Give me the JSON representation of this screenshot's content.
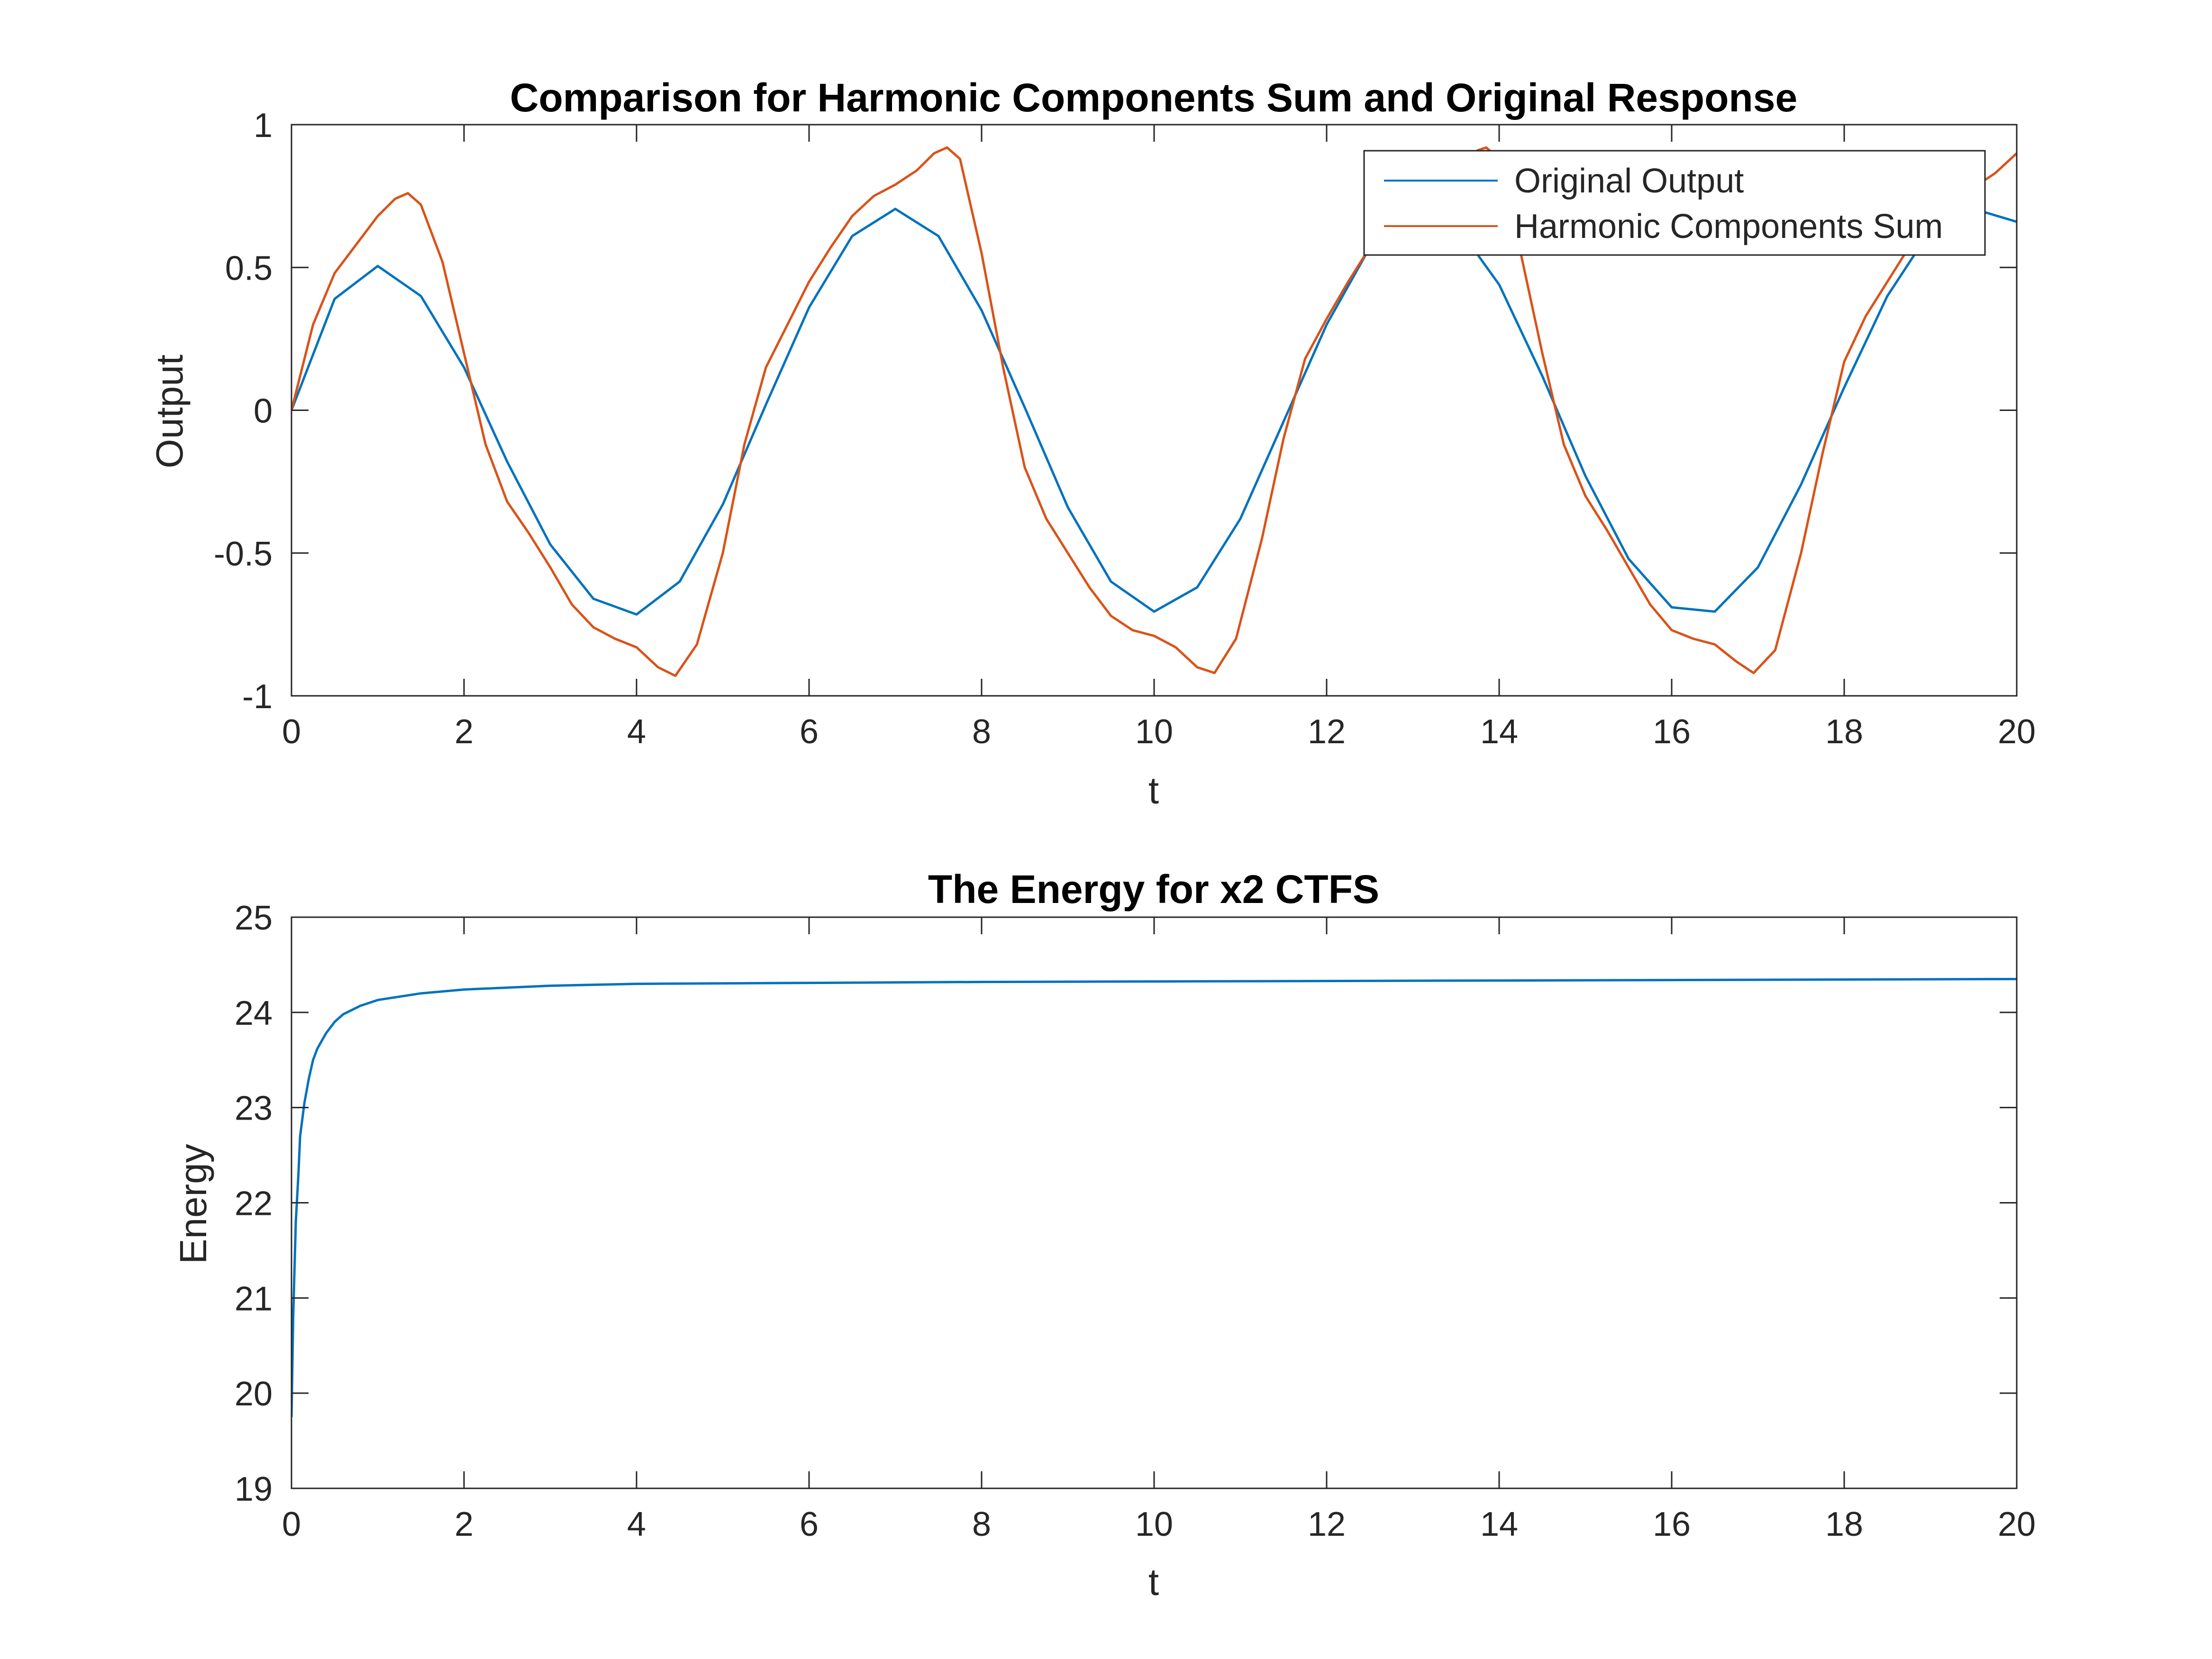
{
  "colors": {
    "series_blue": "#0072BD",
    "series_orange": "#D95319",
    "axis": "#262626",
    "background": "#ffffff"
  },
  "chart_data": [
    {
      "type": "line",
      "title": "Comparison for Harmonic Components Sum and Original Response",
      "xlabel": "t",
      "ylabel": "Output",
      "xlim": [
        0,
        20
      ],
      "ylim": [
        -1,
        1
      ],
      "xticks": [
        "0",
        "2",
        "4",
        "6",
        "8",
        "10",
        "12",
        "14",
        "16",
        "18",
        "20"
      ],
      "yticks": [
        "-1",
        "-0.5",
        "0",
        "0.5",
        "1"
      ],
      "grid": false,
      "legend_position": "top-right",
      "series": [
        {
          "name": "Original Output",
          "color": "#0072BD",
          "x": [
            0,
            0.5,
            1,
            1.5,
            2,
            2.5,
            3,
            3.5,
            4,
            4.5,
            5,
            5.5,
            6,
            6.5,
            7,
            7.5,
            8,
            8.5,
            9,
            9.5,
            10,
            10.5,
            11,
            11.5,
            12,
            12.5,
            13,
            13.5,
            14,
            14.5,
            15,
            15.5,
            16,
            16.5,
            17,
            17.5,
            18,
            18.5,
            19,
            19.5,
            20
          ],
          "y": [
            0,
            0.39,
            0.505,
            0.4,
            0.15,
            -0.18,
            -0.47,
            -0.66,
            -0.715,
            -0.6,
            -0.33,
            0.02,
            0.36,
            0.61,
            0.705,
            0.61,
            0.35,
            0.01,
            -0.34,
            -0.6,
            -0.705,
            -0.62,
            -0.38,
            -0.04,
            0.3,
            0.57,
            0.705,
            0.65,
            0.44,
            0.12,
            -0.23,
            -0.52,
            -0.69,
            -0.705,
            -0.55,
            -0.26,
            0.08,
            0.4,
            0.63,
            0.705,
            0.66
          ]
        },
        {
          "name": "Harmonic Components Sum",
          "color": "#D95319",
          "x": [
            0,
            0.25,
            0.5,
            0.75,
            1,
            1.2,
            1.35,
            1.5,
            1.75,
            2,
            2.25,
            2.5,
            2.75,
            3,
            3.25,
            3.5,
            3.75,
            4,
            4.25,
            4.45,
            4.7,
            5,
            5.25,
            5.5,
            5.75,
            6,
            6.25,
            6.5,
            6.75,
            7,
            7.25,
            7.45,
            7.6,
            7.75,
            8,
            8.25,
            8.5,
            8.75,
            9,
            9.25,
            9.5,
            9.75,
            10,
            10.25,
            10.5,
            10.7,
            10.95,
            11.25,
            11.5,
            11.75,
            12,
            12.25,
            12.5,
            12.75,
            13,
            13.25,
            13.5,
            13.75,
            13.85,
            14,
            14.25,
            14.5,
            14.75,
            15,
            15.25,
            15.5,
            15.75,
            16,
            16.25,
            16.5,
            16.75,
            16.95,
            17.2,
            17.5,
            17.75,
            18,
            18.25,
            18.5,
            18.75,
            19,
            19.25,
            19.5,
            19.75,
            20
          ],
          "y": [
            0,
            0.3,
            0.48,
            0.58,
            0.68,
            0.74,
            0.76,
            0.72,
            0.52,
            0.2,
            -0.12,
            -0.32,
            -0.43,
            -0.55,
            -0.68,
            -0.76,
            -0.8,
            -0.83,
            -0.9,
            -0.93,
            -0.82,
            -0.5,
            -0.12,
            0.15,
            0.3,
            0.45,
            0.57,
            0.68,
            0.75,
            0.79,
            0.84,
            0.9,
            0.92,
            0.88,
            0.55,
            0.15,
            -0.2,
            -0.38,
            -0.5,
            -0.62,
            -0.72,
            -0.77,
            -0.79,
            -0.83,
            -0.9,
            -0.92,
            -0.8,
            -0.45,
            -0.1,
            0.18,
            0.32,
            0.45,
            0.57,
            0.68,
            0.75,
            0.78,
            0.84,
            0.91,
            0.92,
            0.88,
            0.55,
            0.2,
            -0.12,
            -0.3,
            -0.42,
            -0.55,
            -0.68,
            -0.77,
            -0.8,
            -0.82,
            -0.88,
            -0.92,
            -0.84,
            -0.5,
            -0.15,
            0.17,
            0.33,
            0.45,
            0.57,
            0.68,
            0.75,
            0.78,
            0.83,
            0.9
          ]
        }
      ]
    },
    {
      "type": "line",
      "title": "The Energy for x2 CTFS",
      "xlabel": "t",
      "ylabel": "Energy",
      "xlim": [
        0,
        20
      ],
      "ylim": [
        19,
        25
      ],
      "xticks": [
        "0",
        "2",
        "4",
        "6",
        "8",
        "10",
        "12",
        "14",
        "16",
        "18",
        "20"
      ],
      "yticks": [
        "19",
        "20",
        "21",
        "22",
        "23",
        "24",
        "25"
      ],
      "grid": false,
      "series": [
        {
          "color": "#0072BD",
          "x": [
            0,
            0.02,
            0.05,
            0.08,
            0.1,
            0.15,
            0.2,
            0.25,
            0.3,
            0.4,
            0.5,
            0.6,
            0.8,
            1,
            1.5,
            2,
            3,
            4,
            6,
            8,
            10,
            12,
            14,
            16,
            18,
            20
          ],
          "y": [
            19.75,
            20.8,
            21.8,
            22.3,
            22.7,
            23.05,
            23.3,
            23.5,
            23.62,
            23.78,
            23.9,
            23.98,
            24.07,
            24.13,
            24.2,
            24.24,
            24.28,
            24.3,
            24.31,
            24.32,
            24.325,
            24.33,
            24.335,
            24.34,
            24.345,
            24.35
          ]
        }
      ]
    }
  ]
}
